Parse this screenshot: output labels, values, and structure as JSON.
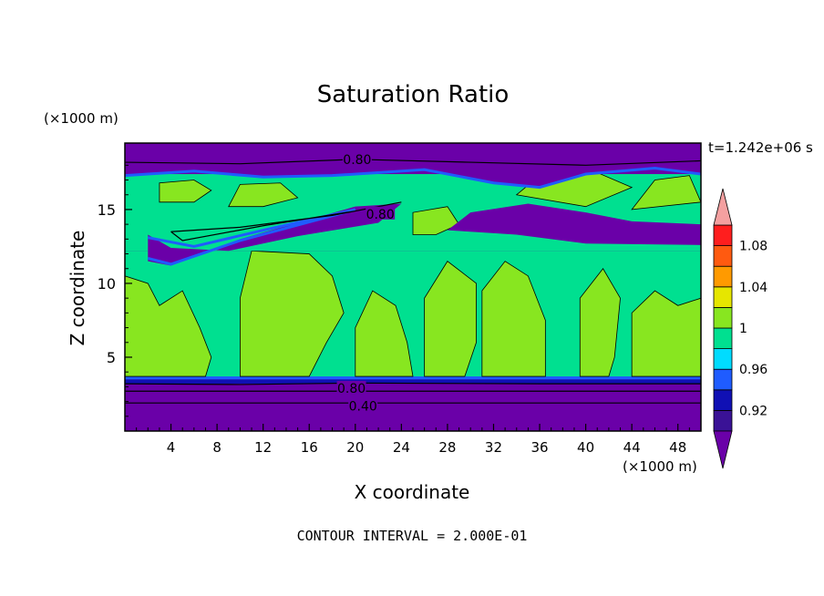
{
  "chart_data": {
    "type": "heatmap",
    "title": "Saturation Ratio",
    "xlabel": "X coordinate",
    "ylabel": "Z coordinate",
    "x_unit": "(×1000 m)",
    "y_unit": "(×1000 m)",
    "time_label": "t=1.242e+06 s",
    "footer": "CONTOUR INTERVAL = 2.000E-01",
    "xlim": [
      0,
      50
    ],
    "ylim": [
      0,
      19.5
    ],
    "x_ticks": [
      "4",
      "8",
      "12",
      "16",
      "20",
      "24",
      "28",
      "32",
      "36",
      "40",
      "44",
      "48"
    ],
    "y_ticks": [
      "5",
      "10",
      "15"
    ],
    "colorbar": {
      "levels": [
        0.9,
        0.92,
        0.94,
        0.96,
        0.98,
        1.0,
        1.02,
        1.04,
        1.06,
        1.08,
        1.1
      ],
      "labels": [
        "0.92",
        "0.96",
        "1",
        "1.04",
        "1.08"
      ],
      "colors": [
        "#3a1296",
        "#1010b4",
        "#1f5cff",
        "#00dcff",
        "#00e090",
        "#88e620",
        "#e6e600",
        "#ff9a00",
        "#ff5a10",
        "#ff1e1e"
      ],
      "under_color": "#6a00a8",
      "over_color": "#f4a0a0"
    },
    "bands": [
      {
        "z": [
          0,
          3.2
        ],
        "value": "< 0.90"
      },
      {
        "z": [
          3.2,
          3.5
        ],
        "value": "0.90-0.96"
      },
      {
        "z": [
          3.5,
          12
        ],
        "value": "0.98-1.02"
      },
      {
        "z": [
          12,
          14.5
        ],
        "value": "0.90-0.98"
      },
      {
        "z": [
          14.5,
          17
        ],
        "value": "0.98-1.02"
      },
      {
        "z": [
          18,
          19.5
        ],
        "value": "< 0.90"
      }
    ],
    "contour_labels": [
      {
        "text": "0.80",
        "x": 17,
        "z": 18.4
      },
      {
        "text": "0.80",
        "x": 19,
        "z": 14.7
      },
      {
        "text": "0.80",
        "x": 16.5,
        "z": 2.9
      },
      {
        "text": "0.40",
        "x": 17.5,
        "z": 1.7
      }
    ]
  }
}
